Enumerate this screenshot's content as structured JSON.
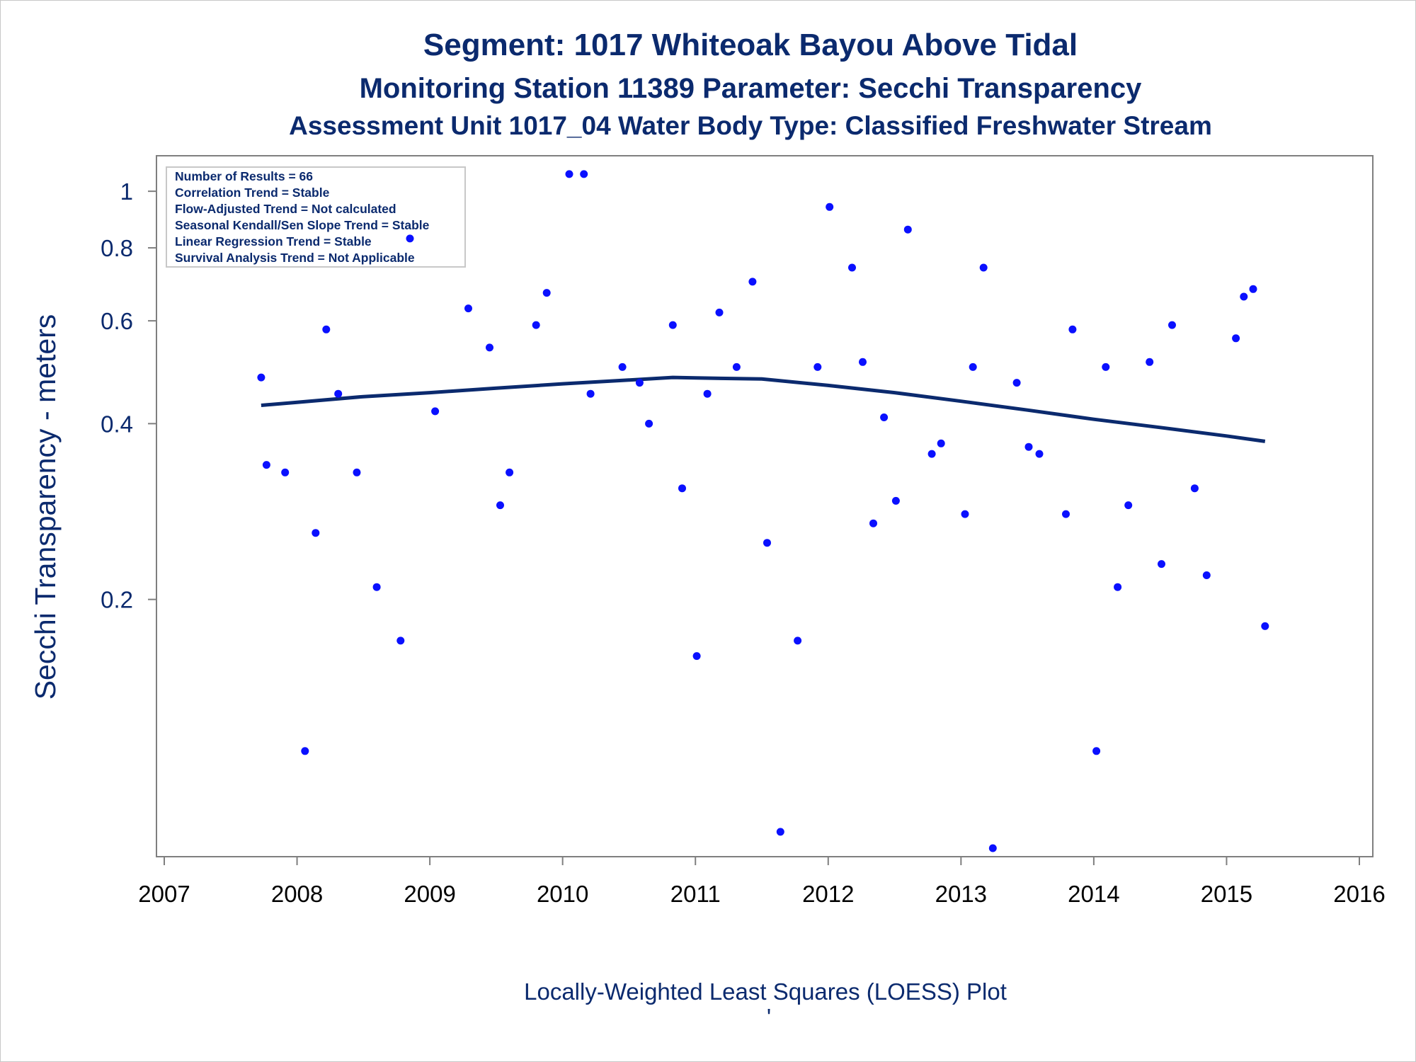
{
  "colors": {
    "title": "#0b2a6e",
    "points": "#0a10ff",
    "loess_line": "#0b2a6e",
    "axis": "#7f7f7f",
    "x_tick_labels": "#000000"
  },
  "footnote": "Locally-Weighted Least Squares (LOESS) Plot",
  "footnote_mark": "'",
  "chart_data": {
    "type": "scatter",
    "title": "Segment: 1017  Whiteoak Bayou Above Tidal",
    "subtitle": "Monitoring Station 11389 Parameter: Secchi Transparency",
    "subtitle2": "Assessment Unit 1017_04   Water Body Type: Classified Freshwater Stream",
    "xlabel": "",
    "ylabel": "Secchi Transparency - meters",
    "x_scale": "linear (years)",
    "y_scale": "log",
    "xlim": [
      2007.0,
      2016.0
    ],
    "ylim": [
      0.075,
      1.1
    ],
    "x_ticks": [
      "2007",
      "2008",
      "2009",
      "2010",
      "2011",
      "2012",
      "2013",
      "2014",
      "2015",
      "2016"
    ],
    "y_ticks": [
      0.2,
      0.4,
      0.6,
      0.8,
      1.0
    ],
    "y_tick_labels": [
      "0.2",
      "0.4",
      "0.6",
      "0.8",
      "1"
    ],
    "grid": false,
    "legend": {
      "placement": "top-left inset",
      "lines": [
        "Number of Results = 66",
        "Correlation Trend = Stable",
        "Flow-Adjusted Trend = Not calculated",
        "Seasonal Kendall/Sen Slope Trend = Stable",
        "Linear Regression Trend = Stable",
        "Survival Analysis Trend = Not Applicable"
      ]
    },
    "series": [
      {
        "type": "scatter",
        "points": [
          [
            2007.73,
            0.48
          ],
          [
            2007.77,
            0.34
          ],
          [
            2007.91,
            0.33
          ],
          [
            2008.06,
            0.11
          ],
          [
            2008.14,
            0.26
          ],
          [
            2008.22,
            0.58
          ],
          [
            2008.31,
            0.45
          ],
          [
            2008.45,
            0.33
          ],
          [
            2008.6,
            0.21
          ],
          [
            2008.78,
            0.17
          ],
          [
            2008.85,
            0.83
          ],
          [
            2009.04,
            0.42
          ],
          [
            2009.29,
            0.63
          ],
          [
            2009.45,
            0.54
          ],
          [
            2009.53,
            0.29
          ],
          [
            2009.6,
            0.33
          ],
          [
            2009.8,
            0.59
          ],
          [
            2009.88,
            0.67
          ],
          [
            2010.05,
            1.07
          ],
          [
            2010.16,
            1.07
          ],
          [
            2010.21,
            0.45
          ],
          [
            2010.45,
            0.5
          ],
          [
            2010.58,
            0.47
          ],
          [
            2010.65,
            0.4
          ],
          [
            2010.83,
            0.59
          ],
          [
            2010.9,
            0.31
          ],
          [
            2011.01,
            0.16
          ],
          [
            2011.09,
            0.45
          ],
          [
            2011.18,
            0.62
          ],
          [
            2011.31,
            0.5
          ],
          [
            2011.43,
            0.7
          ],
          [
            2011.54,
            0.25
          ],
          [
            2011.64,
            0.08
          ],
          [
            2011.77,
            0.17
          ],
          [
            2011.92,
            0.5
          ],
          [
            2012.01,
            0.94
          ],
          [
            2012.18,
            0.74
          ],
          [
            2012.26,
            0.51
          ],
          [
            2012.34,
            0.27
          ],
          [
            2012.42,
            0.41
          ],
          [
            2012.51,
            0.295
          ],
          [
            2012.6,
            0.86
          ],
          [
            2012.78,
            0.355
          ],
          [
            2012.85,
            0.37
          ],
          [
            2013.03,
            0.28
          ],
          [
            2013.09,
            0.5
          ],
          [
            2013.17,
            0.74
          ],
          [
            2013.24,
            0.075
          ],
          [
            2013.42,
            0.47
          ],
          [
            2013.51,
            0.365
          ],
          [
            2013.59,
            0.355
          ],
          [
            2013.79,
            0.28
          ],
          [
            2013.84,
            0.58
          ],
          [
            2014.02,
            0.11
          ],
          [
            2014.09,
            0.5
          ],
          [
            2014.18,
            0.21
          ],
          [
            2014.26,
            0.29
          ],
          [
            2014.42,
            0.51
          ],
          [
            2014.51,
            0.23
          ],
          [
            2014.59,
            0.59
          ],
          [
            2014.76,
            0.31
          ],
          [
            2014.85,
            0.22
          ],
          [
            2015.07,
            0.56
          ],
          [
            2015.13,
            0.66
          ],
          [
            2015.2,
            0.68
          ],
          [
            2015.29,
            0.18
          ]
        ]
      },
      {
        "type": "line",
        "name": "",
        "points": [
          [
            2007.73,
            0.43
          ],
          [
            2008.0,
            0.435
          ],
          [
            2008.5,
            0.445
          ],
          [
            2009.0,
            0.452
          ],
          [
            2009.5,
            0.46
          ],
          [
            2010.0,
            0.468
          ],
          [
            2010.5,
            0.475
          ],
          [
            2010.83,
            0.48
          ],
          [
            2011.0,
            0.479
          ],
          [
            2011.5,
            0.477
          ],
          [
            2012.0,
            0.465
          ],
          [
            2012.5,
            0.452
          ],
          [
            2013.0,
            0.437
          ],
          [
            2013.5,
            0.422
          ],
          [
            2014.0,
            0.407
          ],
          [
            2014.5,
            0.394
          ],
          [
            2015.0,
            0.381
          ],
          [
            2015.29,
            0.373
          ]
        ]
      }
    ]
  }
}
